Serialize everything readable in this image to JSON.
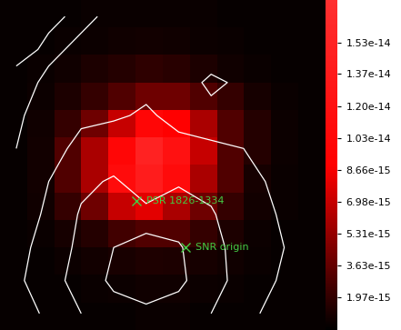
{
  "chart_data": {
    "type": "heatmap",
    "tick_labels": false,
    "xlim": [
      0,
      1
    ],
    "ylim": [
      0,
      1
    ],
    "cells": [
      [
        5e-16,
        5e-16,
        5e-16,
        6e-16,
        6e-16,
        6e-16,
        6e-16,
        6e-16,
        5e-16,
        5e-16,
        5e-16,
        5e-16
      ],
      [
        5e-16,
        5e-16,
        6e-16,
        7e-16,
        8e-16,
        9e-16,
        8e-16,
        7e-16,
        6e-16,
        5e-16,
        5e-16,
        5e-16
      ],
      [
        5e-16,
        6e-16,
        8e-16,
        1.2e-15,
        1.5e-15,
        1.8e-15,
        1.6e-15,
        1.2e-15,
        8e-16,
        6e-16,
        5e-16,
        5e-16
      ],
      [
        5e-16,
        7e-16,
        1.2e-15,
        2e-15,
        3e-15,
        4e-15,
        4e-15,
        3e-15,
        2e-15,
        1e-15,
        6e-16,
        5e-16
      ],
      [
        5e-16,
        8e-16,
        2e-15,
        4e-15,
        7e-15,
        1e-14,
        9e-15,
        6e-15,
        3e-15,
        1.5e-15,
        7e-16,
        5e-16
      ],
      [
        5e-16,
        9e-16,
        3e-15,
        6e-15,
        1e-14,
        1.5e-14,
        1.2e-14,
        7e-15,
        3e-15,
        1.5e-15,
        7e-16,
        5e-16
      ],
      [
        5e-16,
        9e-16,
        3e-15,
        6e-15,
        1.1e-14,
        1.4e-14,
        1.1e-14,
        6e-15,
        3e-15,
        1e-15,
        6e-16,
        5e-16
      ],
      [
        5e-16,
        8e-16,
        2e-15,
        4e-15,
        7e-15,
        8e-15,
        6e-15,
        4e-15,
        2e-15,
        9e-16,
        6e-16,
        5e-16
      ],
      [
        5e-16,
        6e-16,
        1e-15,
        1.5e-15,
        2.5e-15,
        3e-15,
        3e-15,
        2e-15,
        1.2e-15,
        7e-16,
        5e-16,
        5e-16
      ],
      [
        5e-16,
        5e-16,
        7e-16,
        9e-16,
        1.1e-15,
        1.3e-15,
        1.2e-15,
        1e-15,
        8e-16,
        6e-16,
        5e-16,
        5e-16
      ],
      [
        5e-16,
        5e-16,
        5e-16,
        6e-16,
        7e-16,
        8e-16,
        8e-16,
        7e-16,
        6e-16,
        5e-16,
        5e-16,
        5e-16
      ],
      [
        5e-16,
        5e-16,
        5e-16,
        5e-16,
        5e-16,
        6e-16,
        6e-16,
        5e-16,
        5e-16,
        5e-16,
        5e-16,
        5e-16
      ]
    ],
    "colorbar": {
      "range": [
        2.4e-16,
        1.756e-14
      ],
      "ticks": [
        {
          "value": 1.97e-15,
          "label": "1.97e-15"
        },
        {
          "value": 3.63e-15,
          "label": "3.63e-15"
        },
        {
          "value": 5.31e-15,
          "label": "5.31e-15"
        },
        {
          "value": 6.98e-15,
          "label": "6.98e-15"
        },
        {
          "value": 8.66e-15,
          "label": "8.66e-15"
        },
        {
          "value": 1.03e-14,
          "label": "1.03e-14"
        },
        {
          "value": 1.2e-14,
          "label": "1.20e-14"
        },
        {
          "value": 1.37e-14,
          "label": "1.37e-14"
        },
        {
          "value": 1.53e-14,
          "label": "1.53e-14"
        }
      ]
    },
    "contours": {
      "color": "#ffffff",
      "levels": [
        1.0,
        2.0,
        3.0,
        4.0
      ],
      "values": [
        [
          1.5,
          2.2,
          3.0,
          3.6,
          3.8,
          3.6,
          3.0,
          2.2,
          1.8,
          1.5
        ],
        [
          1.8,
          2.6,
          3.4,
          4.2,
          4.5,
          4.2,
          3.4,
          2.6,
          2.0,
          1.6
        ],
        [
          1.6,
          2.5,
          3.2,
          4.0,
          4.6,
          4.1,
          3.3,
          2.6,
          2.1,
          1.7
        ],
        [
          1.4,
          2.2,
          3.1,
          3.6,
          3.2,
          3.5,
          3.1,
          2.4,
          2.0,
          1.8
        ],
        [
          1.2,
          2.0,
          2.8,
          3.1,
          2.6,
          2.9,
          2.7,
          2.2,
          1.9,
          1.7
        ],
        [
          1.0,
          1.6,
          2.3,
          2.5,
          2.4,
          2.2,
          2.1,
          2.0,
          1.8,
          1.6
        ],
        [
          0.9,
          1.3,
          1.8,
          1.9,
          2.1,
          1.8,
          1.7,
          1.9,
          1.6,
          1.4
        ],
        [
          0.8,
          1.1,
          1.4,
          1.6,
          1.8,
          1.5,
          2.2,
          1.8,
          1.5,
          1.3
        ],
        [
          1.2,
          0.9,
          1.1,
          1.3,
          1.5,
          1.6,
          1.4,
          1.2,
          1.4,
          1.2
        ],
        [
          1.6,
          1.1,
          0.9,
          1.1,
          1.2,
          1.3,
          1.1,
          1.0,
          1.2,
          1.1
        ]
      ]
    },
    "markers": [
      {
        "label": "PSR 1826-1334",
        "x": 0.42,
        "y": 0.39,
        "color": "#44cc44",
        "marker": "x"
      },
      {
        "label": "SNR origin",
        "x": 0.57,
        "y": 0.25,
        "color": "#44cc44",
        "marker": "x"
      }
    ]
  }
}
